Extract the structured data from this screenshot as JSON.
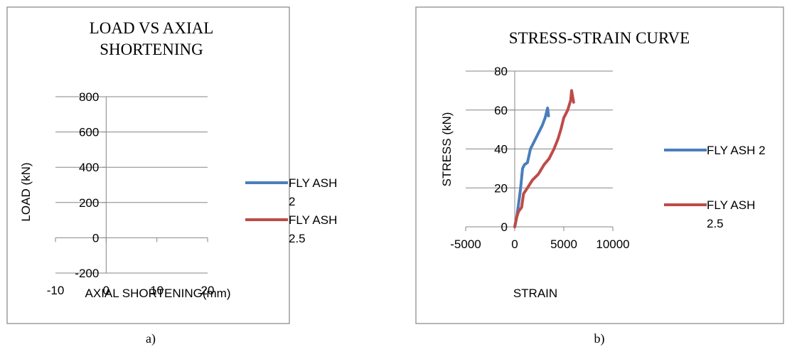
{
  "captions": [
    "a)",
    "b)"
  ],
  "chart_data": [
    {
      "type": "line",
      "title": "LOAD VS AXIAL SHORTENING",
      "title_lines": [
        "LOAD VS AXIAL",
        "SHORTENING"
      ],
      "xlabel": "AXIAL SHORTENING(mm)",
      "ylabel": "LOAD (kN)",
      "xlim": [
        -10,
        20
      ],
      "ylim": [
        -200,
        800
      ],
      "xticks": [
        "-10",
        "0",
        "10",
        "20"
      ],
      "yticks": [
        "-200",
        "0",
        "200",
        "400",
        "600",
        "800"
      ],
      "grid": true,
      "legend_position": "right",
      "series": [
        {
          "name": "FLY ASH 2",
          "legend_lines": [
            "FLY ASH",
            "2"
          ],
          "color": "#4a7ebb",
          "points": []
        },
        {
          "name": "FLY ASH 2.5",
          "legend_lines": [
            "FLY ASH",
            "2.5"
          ],
          "color": "#be4b48",
          "points": []
        }
      ]
    },
    {
      "type": "line",
      "title": "STRESS-STRAIN CURVE",
      "xlabel": "STRAIN",
      "ylabel": "STRESS (kN)",
      "xlim": [
        -5000,
        10000
      ],
      "ylim": [
        0,
        80
      ],
      "xticks": [
        "-5000",
        "0",
        "5000",
        "10000"
      ],
      "yticks": [
        "0",
        "20",
        "40",
        "60",
        "80"
      ],
      "grid": true,
      "legend_position": "right",
      "series": [
        {
          "name": "FLY ASH 2",
          "legend_lines": [
            "FLY ASH 2"
          ],
          "color": "#4a7ebb",
          "points": [
            [
              0,
              0
            ],
            [
              200,
              5
            ],
            [
              400,
              12
            ],
            [
              600,
              20
            ],
            [
              800,
              30
            ],
            [
              1000,
              32
            ],
            [
              1300,
              33
            ],
            [
              1600,
              40
            ],
            [
              2000,
              44
            ],
            [
              2400,
              48
            ],
            [
              2800,
              52
            ],
            [
              3100,
              56
            ],
            [
              3350,
              61
            ],
            [
              3450,
              57
            ]
          ]
        },
        {
          "name": "FLY ASH 2.5",
          "legend_lines": [
            "FLY ASH",
            "2.5"
          ],
          "color": "#be4b48",
          "points": [
            [
              0,
              0
            ],
            [
              200,
              5
            ],
            [
              400,
              8
            ],
            [
              700,
              10
            ],
            [
              900,
              17
            ],
            [
              1300,
              20
            ],
            [
              1800,
              24
            ],
            [
              2400,
              27
            ],
            [
              3000,
              32
            ],
            [
              3500,
              35
            ],
            [
              4000,
              40
            ],
            [
              4400,
              45
            ],
            [
              4700,
              50
            ],
            [
              5000,
              56
            ],
            [
              5400,
              60
            ],
            [
              5700,
              65
            ],
            [
              5800,
              70
            ],
            [
              6000,
              64
            ]
          ]
        }
      ]
    }
  ]
}
